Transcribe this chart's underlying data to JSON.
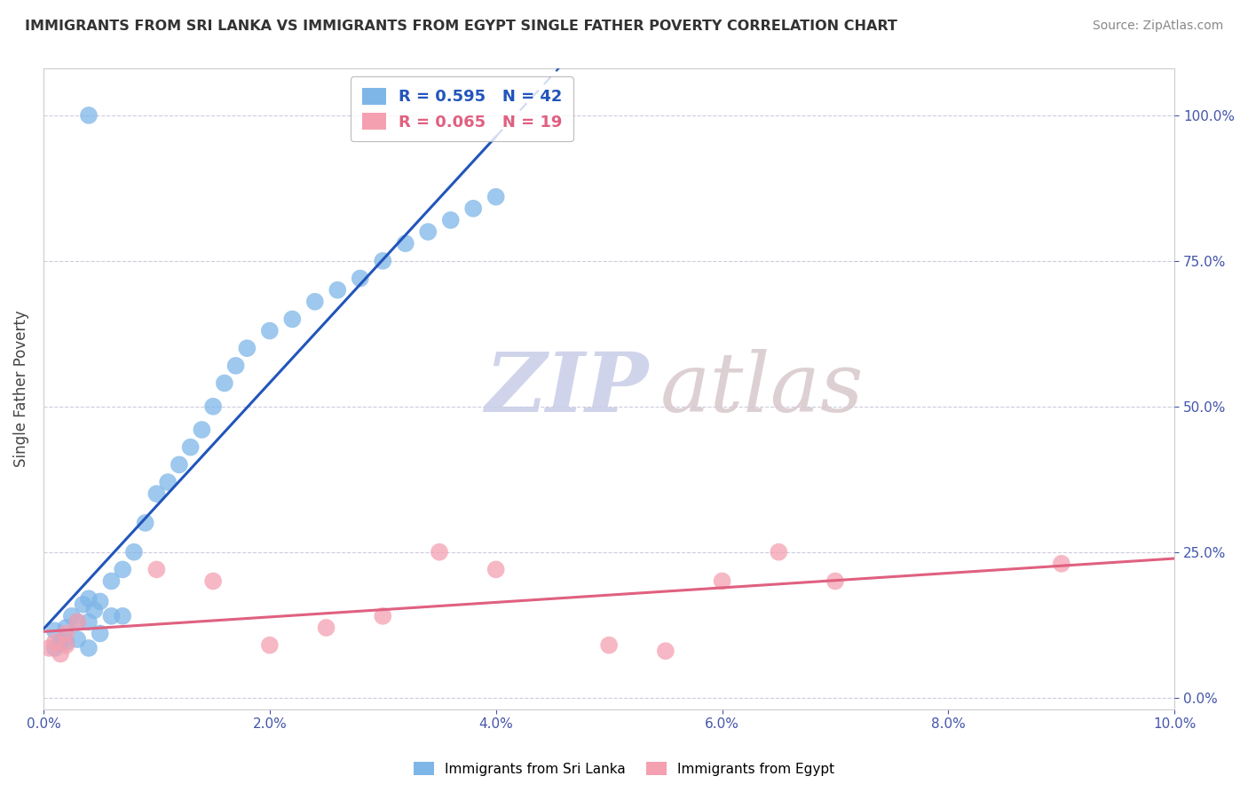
{
  "title": "IMMIGRANTS FROM SRI LANKA VS IMMIGRANTS FROM EGYPT SINGLE FATHER POVERTY CORRELATION CHART",
  "source": "Source: ZipAtlas.com",
  "ylabel": "Single Father Poverty",
  "r_sri_lanka": 0.595,
  "n_sri_lanka": 42,
  "r_egypt": 0.065,
  "n_egypt": 19,
  "legend_label_1": "Immigrants from Sri Lanka",
  "legend_label_2": "Immigrants from Egypt",
  "sri_lanka_color": "#7EB6E8",
  "egypt_color": "#F4A0B0",
  "sri_lanka_line_color": "#2255BB",
  "egypt_line_color": "#E06080",
  "background_color": "#ffffff",
  "watermark_zip": "ZIP",
  "watermark_atlas": "atlas",
  "sl_x": [
    0.001,
    0.0015,
    0.001,
    0.002,
    0.002,
    0.0025,
    0.003,
    0.003,
    0.0035,
    0.004,
    0.004,
    0.0045,
    0.004,
    0.005,
    0.005,
    0.006,
    0.006,
    0.007,
    0.007,
    0.008,
    0.009,
    0.01,
    0.011,
    0.012,
    0.013,
    0.014,
    0.015,
    0.016,
    0.017,
    0.018,
    0.02,
    0.022,
    0.024,
    0.026,
    0.028,
    0.03,
    0.032,
    0.034,
    0.036,
    0.038,
    0.04,
    0.004
  ],
  "sl_y": [
    0.085,
    0.095,
    0.115,
    0.095,
    0.12,
    0.14,
    0.1,
    0.13,
    0.16,
    0.085,
    0.13,
    0.15,
    0.17,
    0.11,
    0.165,
    0.14,
    0.2,
    0.14,
    0.22,
    0.25,
    0.3,
    0.35,
    0.37,
    0.4,
    0.43,
    0.46,
    0.5,
    0.54,
    0.57,
    0.6,
    0.63,
    0.65,
    0.68,
    0.7,
    0.72,
    0.75,
    0.78,
    0.8,
    0.82,
    0.84,
    0.86,
    1.0
  ],
  "eg_x": [
    0.0005,
    0.001,
    0.0015,
    0.002,
    0.002,
    0.003,
    0.01,
    0.015,
    0.02,
    0.025,
    0.03,
    0.035,
    0.04,
    0.05,
    0.055,
    0.06,
    0.065,
    0.07,
    0.09
  ],
  "eg_y": [
    0.085,
    0.095,
    0.075,
    0.11,
    0.09,
    0.13,
    0.22,
    0.2,
    0.09,
    0.12,
    0.14,
    0.25,
    0.22,
    0.09,
    0.08,
    0.2,
    0.25,
    0.2,
    0.23
  ],
  "xlim": [
    0,
    0.1
  ],
  "ylim": [
    -0.02,
    1.08
  ],
  "xticks": [
    0,
    0.02,
    0.04,
    0.06,
    0.08,
    0.1
  ],
  "yticks": [
    0.0,
    0.25,
    0.5,
    0.75,
    1.0
  ],
  "grid_color": "#CCCCDD",
  "title_fontsize": 11.5,
  "source_fontsize": 10,
  "tick_color": "#4455AA"
}
